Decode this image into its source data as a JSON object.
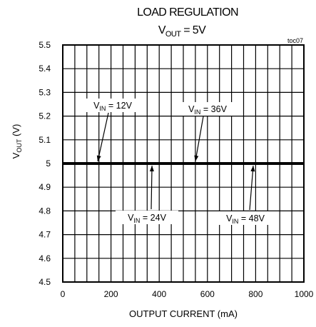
{
  "chart_data": {
    "type": "line",
    "title": "LOAD REGULATION",
    "subtitle": {
      "prefix": "V",
      "sub": "OUT",
      "suffix": " = 5V"
    },
    "tag": "toc07",
    "xlabel": "OUTPUT CURRENT (mA)",
    "ylabel": {
      "prefix": "V",
      "sub": "OUT",
      "suffix": " (V)"
    },
    "xlim": [
      0,
      1000
    ],
    "ylim": [
      4.5,
      5.5
    ],
    "x_ticks": [
      "0",
      "200",
      "400",
      "600",
      "800",
      "1000"
    ],
    "y_ticks": [
      "4.5",
      "4.6",
      "4.7",
      "4.8",
      "4.9",
      "5",
      "5.1",
      "5.2",
      "5.3",
      "5.4",
      "5.5"
    ],
    "grid": true,
    "x": [
      0,
      1000
    ],
    "series": [
      {
        "values": [
          5.0,
          5.0
        ]
      },
      {
        "values": [
          5.0,
          5.0
        ]
      },
      {
        "values": [
          5.0,
          5.0
        ]
      },
      {
        "values": [
          5.0,
          5.0
        ]
      }
    ],
    "annotations": [
      {
        "prefix": "V",
        "sub": "IN",
        "suffix": " = 12V",
        "target_x": 145,
        "target_y": 5.0
      },
      {
        "prefix": "V",
        "sub": "IN",
        "suffix": " = 36V",
        "target_x": 550,
        "target_y": 5.0
      },
      {
        "prefix": "V",
        "sub": "IN",
        "suffix": " = 24V",
        "target_x": 370,
        "target_y": 5.0
      },
      {
        "prefix": "V",
        "sub": "IN",
        "suffix": " = 48V",
        "target_x": 790,
        "target_y": 5.0
      }
    ]
  }
}
